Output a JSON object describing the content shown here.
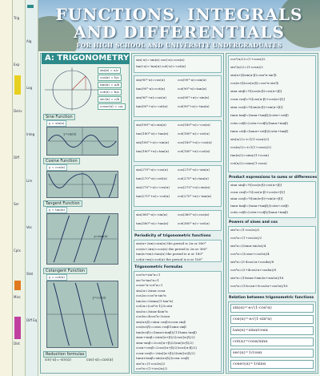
{
  "header": {
    "title_line1": "FUNCTIONS, INTEGRALS",
    "title_line2": "AND DIFFERENTIALS",
    "subtitle": "FOR HIGH SCHOOL AND UNIVERSITY UNDERGRADUATES"
  },
  "section": {
    "title": "A: TRIGONOMETRY"
  },
  "col1": {
    "sine_head": "Sine Function",
    "sine_formula": "y = sin(x)",
    "sine_graph_label": "y=sin(x)",
    "cosine_head": "Cosine Function",
    "cosine_formula": "y = cos(x)",
    "tangent_head": "Tangent Function",
    "tangent_formula": "y = tan(x)",
    "tangent_graph_label": "y=tan(x)",
    "cotangent_head": "Cotangent Function",
    "cotangent_formula": "y = cot(x)",
    "cotangent_graph_label": "y=cot(x)",
    "reduction_head": "Reduction formulas",
    "reduction_1": "sin(-α)=-sin(α)",
    "reduction_2": "cos(-α)=cos(α)",
    "circle_boxes": [
      "sin(x) = a/c",
      "cos(x) = b/c",
      "tan(x) = a/b",
      "cot(x) = b/a",
      "sec(x) = c/b",
      "cosec(x) = c/a"
    ]
  },
  "col2": {
    "group1": [
      "sin(-α)=-sin(α)   cos(-α)=cos(α)",
      "tan(-α)=-tan(α)   cot(-α)=-cot(α)"
    ],
    "group2": [
      "sin(90°-α)=cos(α)",
      "cos(90°-α)=sin(α)",
      "tan(90°-α)=cot(α)",
      "cot(90°-α)=tan(α)",
      "sin(90°+α)=cos(α)",
      "cos(90°+α)=-sin(α)",
      "tan(90°+α)=-cot(α)",
      "cot(90°+α)=-tan(α)"
    ],
    "group3": [
      "sin(180°-α)=sin(α)",
      "cos(180°-α)=-cos(α)",
      "tan(180°-α)=-tan(α)",
      "cot(180°-α)=-cot(α)",
      "sin(180°+α)=-sin(α)",
      "cos(180°+α)=-cos(α)",
      "tan(180°+α)=tan(α)",
      "cot(180°+α)=cot(α)"
    ],
    "group4": [
      "sin(270°-α)=-cos(α)",
      "cos(270°-α)=-sin(α)",
      "tan(270°-α)=cot(α)",
      "cot(270°-α)=tan(α)",
      "sin(270°+α)=-cos(α)",
      "cos(270°+α)=sin(α)",
      "tan(270°+α)=-cot(α)",
      "cot(270°+α)=-tan(α)"
    ],
    "group5": [
      "sin(360°-α)=-sin(α)",
      "cos(360°-α)=cos(α)",
      "tan(360°-α)=-tan(α)",
      "cot(360°-α)=-cot(α)"
    ],
    "periodicity_head": "Periodicity of trigonometric functions",
    "periodicity": [
      "sin(α+2πn)=sin(α)   the period is 2π or 360°",
      "cos(α+2πn)=cos(α)   the period is 2π or 360°",
      "tan(α+πn)=tan(α)   the period is π or 180°",
      "cot(α+πn)=cot(α)   the period is π or 180°"
    ],
    "trig_head": "Trigonometric Formulas",
    "trig": [
      "cos²α+sin²α=1",
      "sec²α-tan²α=1",
      "cosec²α-cot²α=1",
      "sin2α=2sinα cosα",
      "cos2α=cos²α-sin²α",
      "tan2α=2tanα/(1-tan²α)",
      "cot2α=(cot²α-1)/2cotα",
      "sin3α=3sinα-4sin³α",
      "cos3α=4cos³α-3cosα",
      "sin(α±β)=sinα cosβ±cosα sinβ",
      "cos(α±β)=cosα cosβ∓sinα sinβ",
      "tan(α±β)=(tanα±tanβ)/(1∓tanα tanβ)",
      "sinα+sinβ=2sin((α+β)/2)cos((α-β)/2)",
      "sinα-sinβ=2cos((α+β)/2)sin((α-β)/2)",
      "cosα+cosβ=2cos((α+β)/2)cos((α-β)/2)",
      "cosα-cosβ=-2sin((α+β)/2)sin((α-β)/2)",
      "tanα±tanβ=sin(α±β)/(cosα cosβ)",
      "sin²α=(1-cos2α)/2",
      "cos²α=(1+cos2α)/2"
    ]
  },
  "col3": {
    "top": [
      "cos²(α/2)=(1+cosα)/2",
      "sin²(α/2)=(1-cosα)/2",
      "sin(α+β)sin(α-β)=sin²α-sin²β",
      "cos(α+β)cos(α-β)=cos²α-sin²β",
      "sinα sinβ=½[cos(α-β)-cos(α+β)]",
      "cosα cosβ=½[cos(α-β)+cos(α+β)]",
      "sinα cosβ=½[sin(α-β)+sin(α+β)]",
      "tanα tanβ=(tanα+tanβ)/(cotα+cotβ)",
      "cotα cotβ=(cotα+cotβ)/(tanα+tanβ)",
      "tanα cotβ=(tanα+cotβ)/(cotα+tanβ)",
      "sin(α/2)=±√((1-cosα)/2)",
      "cos(α/2)=±√((1+cosα)/2)",
      "tan(α/2)=sinα/(1+cosα)",
      "cot(α/2)=sinα/(1-cosα)"
    ],
    "product_head": "Product expressions to sums or differences",
    "product": [
      "sinα sinβ=½[cos(α-β)-cos(α+β)]",
      "cosα cosβ=½[cos(α-β)+cos(α+β)]",
      "sinα cosβ=½[sin(α-β)+sin(α+β)]",
      "tanα tanβ=(tanα+tanβ)/(cotα+cotβ)",
      "cotα cotβ=(cotα+cotβ)/(tanα+tanβ)"
    ],
    "powers_head": "Powers of sines and cos",
    "powers": [
      "sin²α=(1-cos2α)/2",
      "cos²α=(1+cos2α)/2",
      "sin³α=(3sinα-sin3α)/4",
      "cos³α=(3cosα+cos3α)/4",
      "sin⁴α=(3-4cos2α+cos4α)/8",
      "cos⁴α=(3+4cos2α+cos4α)/8",
      "sin⁵α=(10sinα-5sin3α+sin5α)/16",
      "cos⁵α=(10cosα+5cos3α+cos5α)/16"
    ],
    "relation_head": "Relation between trigonometric functions",
    "relation": [
      "sin(α)=±√(1-cos²α)",
      "cos(α)=±√(1-sin²α)",
      "tan(α)=sinα/cosα",
      "cot(α)=cosα/sinα",
      "sec(α)=1/cosα",
      "cosec(α)=1/sinα"
    ]
  },
  "tabs": {
    "labels": [
      "Trig",
      "Alg",
      "Exp",
      "Log",
      "Deriv",
      "Integ",
      "Diff",
      "Lim",
      "Ser",
      "Vec",
      "Cplx",
      "Stat",
      "Misc",
      "Diff Eq",
      "Dist"
    ]
  },
  "colors": {
    "teal": "#2d8a8a",
    "yellow": "#e8d020",
    "magenta": "#c040a0",
    "orange": "#e07a20"
  }
}
